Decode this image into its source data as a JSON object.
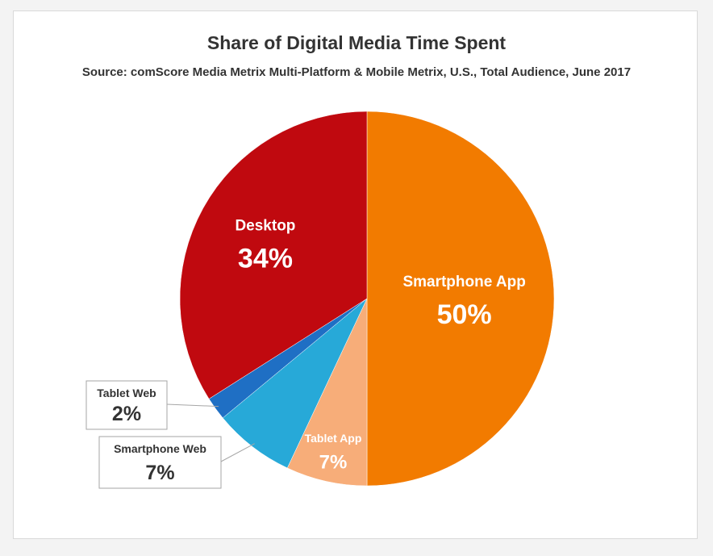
{
  "chart_data": {
    "type": "pie",
    "title": "Share of Digital Media Time Spent",
    "subtitle": "Source: comScore Media Metrix Multi-Platform & Mobile Metrix, U.S., Total Audience, June 2017",
    "slices": [
      {
        "label": "Smartphone App",
        "value": 50,
        "display": "50%",
        "color": "#f27b00",
        "label_color": "#ffffff",
        "callout": false
      },
      {
        "label": "Tablet App",
        "value": 7,
        "display": "7%",
        "color": "#f7ad79",
        "label_color": "#ffffff",
        "callout": false
      },
      {
        "label": "Smartphone Web",
        "value": 7,
        "display": "7%",
        "color": "#27a9d8",
        "label_color": "#333333",
        "callout": true
      },
      {
        "label": "Tablet Web",
        "value": 2,
        "display": "2%",
        "color": "#1f6fc4",
        "label_color": "#333333",
        "callout": true
      },
      {
        "label": "Desktop",
        "value": 34,
        "display": "34%",
        "color": "#c0090f",
        "label_color": "#ffffff",
        "callout": false
      }
    ],
    "start": "12 o'clock",
    "direction": "clockwise",
    "legend": "none"
  }
}
